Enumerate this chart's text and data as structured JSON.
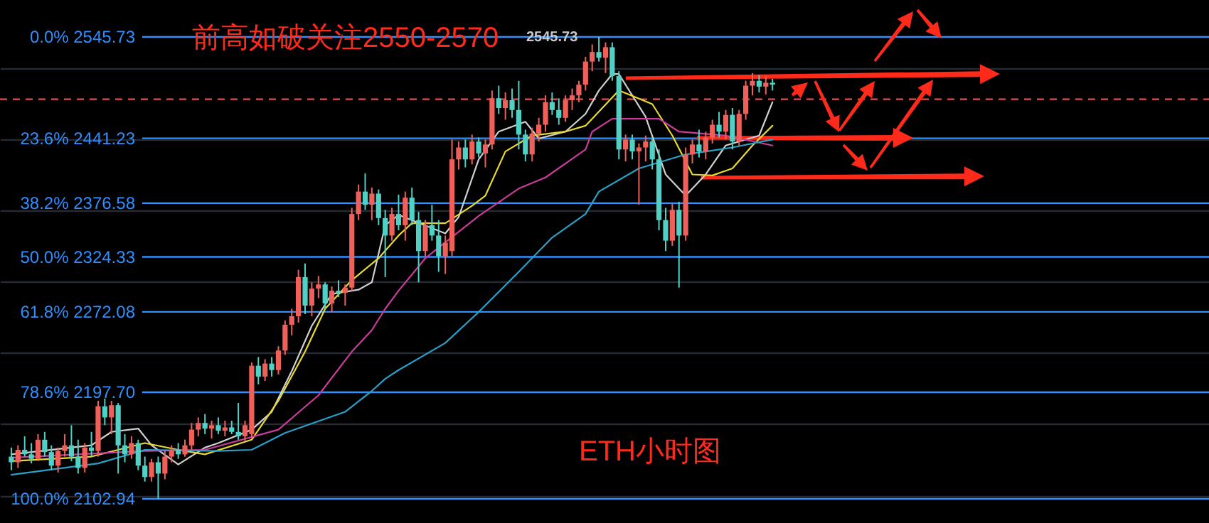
{
  "chart_data": {
    "type": "candlestick",
    "categories": [
      null,
      null,
      null,
      null,
      null,
      null,
      null,
      null,
      null,
      null,
      null,
      null,
      null,
      null,
      null,
      null,
      null,
      null,
      null,
      null,
      null,
      null,
      null,
      null,
      null,
      null,
      null,
      null,
      null,
      null,
      null,
      null,
      null,
      null,
      null,
      null,
      null,
      null,
      null,
      null,
      null,
      null,
      null,
      null,
      null,
      null,
      null,
      null,
      null,
      null,
      null,
      null,
      null,
      null,
      null,
      null,
      null,
      null,
      null,
      null,
      null,
      null,
      null,
      null,
      null,
      null,
      null,
      null,
      null,
      null,
      null,
      null,
      null,
      null,
      null,
      null,
      null,
      null,
      null,
      null,
      null,
      null,
      null,
      null,
      null,
      null,
      null,
      null,
      null,
      null,
      null,
      null,
      null,
      null,
      null,
      null,
      null,
      null,
      null,
      null,
      null,
      null,
      null,
      null,
      null,
      null,
      null,
      null,
      null,
      null,
      null,
      null,
      null,
      null,
      null
    ],
    "ohlc": [
      [
        2140,
        2148,
        2128,
        2135
      ],
      [
        2135,
        2150,
        2130,
        2146
      ],
      [
        2146,
        2158,
        2140,
        2142
      ],
      [
        2142,
        2152,
        2134,
        2138
      ],
      [
        2138,
        2160,
        2136,
        2155
      ],
      [
        2155,
        2162,
        2140,
        2144
      ],
      [
        2144,
        2150,
        2128,
        2132
      ],
      [
        2132,
        2148,
        2126,
        2145
      ],
      [
        2145,
        2160,
        2140,
        2150
      ],
      [
        2150,
        2168,
        2136,
        2140
      ],
      [
        2140,
        2155,
        2125,
        2130
      ],
      [
        2130,
        2152,
        2126,
        2148
      ],
      [
        2148,
        2162,
        2140,
        2145
      ],
      [
        2145,
        2190,
        2140,
        2185
      ],
      [
        2185,
        2192,
        2168,
        2175
      ],
      [
        2175,
        2190,
        2160,
        2186
      ],
      [
        2186,
        2188,
        2125,
        2150
      ],
      [
        2150,
        2160,
        2135,
        2142
      ],
      [
        2142,
        2158,
        2138,
        2152
      ],
      [
        2152,
        2155,
        2128,
        2132
      ],
      [
        2132,
        2140,
        2118,
        2122
      ],
      [
        2122,
        2138,
        2118,
        2135
      ],
      [
        2135,
        2140,
        2103,
        2125
      ],
      [
        2125,
        2145,
        2120,
        2140
      ],
      [
        2140,
        2150,
        2135,
        2146
      ],
      [
        2146,
        2152,
        2138,
        2142
      ],
      [
        2142,
        2155,
        2140,
        2150
      ],
      [
        2150,
        2170,
        2146,
        2164
      ],
      [
        2164,
        2175,
        2158,
        2170
      ],
      [
        2170,
        2178,
        2160,
        2165
      ],
      [
        2165,
        2172,
        2156,
        2168
      ],
      [
        2168,
        2175,
        2160,
        2163
      ],
      [
        2163,
        2172,
        2158,
        2166
      ],
      [
        2166,
        2172,
        2160,
        2162
      ],
      [
        2162,
        2188,
        2155,
        2158
      ],
      [
        2158,
        2172,
        2154,
        2168
      ],
      [
        2160,
        2225,
        2156,
        2222
      ],
      [
        2222,
        2230,
        2205,
        2212
      ],
      [
        2212,
        2228,
        2208,
        2224
      ],
      [
        2224,
        2230,
        2212,
        2218
      ],
      [
        2218,
        2240,
        2214,
        2236
      ],
      [
        2236,
        2264,
        2232,
        2260
      ],
      [
        2260,
        2275,
        2250,
        2268
      ],
      [
        2268,
        2312,
        2262,
        2305
      ],
      [
        2305,
        2318,
        2270,
        2278
      ],
      [
        2278,
        2300,
        2268,
        2294
      ],
      [
        2294,
        2306,
        2285,
        2298
      ],
      [
        2298,
        2300,
        2275,
        2280
      ],
      [
        2280,
        2296,
        2272,
        2292
      ],
      [
        2292,
        2302,
        2286,
        2290
      ],
      [
        2290,
        2298,
        2278,
        2295
      ],
      [
        2295,
        2372,
        2292,
        2366
      ],
      [
        2366,
        2395,
        2360,
        2388
      ],
      [
        2388,
        2406,
        2370,
        2375
      ],
      [
        2375,
        2392,
        2360,
        2386
      ],
      [
        2386,
        2390,
        2355,
        2362
      ],
      [
        2362,
        2370,
        2305,
        2345
      ],
      [
        2345,
        2372,
        2340,
        2366
      ],
      [
        2366,
        2385,
        2350,
        2355
      ],
      [
        2355,
        2388,
        2340,
        2382
      ],
      [
        2382,
        2392,
        2355,
        2360
      ],
      [
        2360,
        2368,
        2300,
        2330
      ],
      [
        2330,
        2360,
        2325,
        2355
      ],
      [
        2355,
        2375,
        2340,
        2345
      ],
      [
        2345,
        2360,
        2310,
        2325
      ],
      [
        2325,
        2345,
        2308,
        2338
      ],
      [
        2330,
        2440,
        2325,
        2420
      ],
      [
        2420,
        2438,
        2410,
        2432
      ],
      [
        2432,
        2440,
        2412,
        2420
      ],
      [
        2420,
        2445,
        2415,
        2438
      ],
      [
        2438,
        2442,
        2422,
        2426
      ],
      [
        2426,
        2440,
        2412,
        2435
      ],
      [
        2435,
        2490,
        2430,
        2482
      ],
      [
        2482,
        2495,
        2466,
        2472
      ],
      [
        2472,
        2488,
        2460,
        2480
      ],
      [
        2480,
        2492,
        2462,
        2470
      ],
      [
        2470,
        2500,
        2430,
        2445
      ],
      [
        2445,
        2450,
        2418,
        2425
      ],
      [
        2425,
        2452,
        2418,
        2446
      ],
      [
        2446,
        2462,
        2438,
        2455
      ],
      [
        2455,
        2485,
        2448,
        2478
      ],
      [
        2478,
        2488,
        2465,
        2470
      ],
      [
        2470,
        2482,
        2455,
        2462
      ],
      [
        2462,
        2485,
        2458,
        2480
      ],
      [
        2480,
        2492,
        2470,
        2485
      ],
      [
        2485,
        2500,
        2478,
        2496
      ],
      [
        2496,
        2525,
        2490,
        2520
      ],
      [
        2520,
        2538,
        2510,
        2530
      ],
      [
        2530,
        2545.73,
        2520,
        2524
      ],
      [
        2524,
        2540,
        2508,
        2535
      ],
      [
        2535,
        2540,
        2500,
        2505
      ],
      [
        2505,
        2510,
        2420,
        2430
      ],
      [
        2430,
        2445,
        2418,
        2440
      ],
      [
        2440,
        2445,
        2420,
        2428
      ],
      [
        2428,
        2436,
        2375,
        2432
      ],
      [
        2432,
        2444,
        2418,
        2438
      ],
      [
        2438,
        2442,
        2410,
        2420
      ],
      [
        2420,
        2430,
        2350,
        2360
      ],
      [
        2360,
        2372,
        2330,
        2340
      ],
      [
        2340,
        2376,
        2335,
        2370
      ],
      [
        2370,
        2378,
        2295,
        2345
      ],
      [
        2345,
        2432,
        2340,
        2425
      ],
      [
        2425,
        2440,
        2416,
        2435
      ],
      [
        2435,
        2450,
        2422,
        2428
      ],
      [
        2428,
        2448,
        2420,
        2442
      ],
      [
        2442,
        2460,
        2436,
        2455
      ],
      [
        2455,
        2468,
        2442,
        2448
      ],
      [
        2448,
        2470,
        2440,
        2465
      ],
      [
        2465,
        2472,
        2430,
        2438
      ],
      [
        2438,
        2470,
        2434,
        2466
      ],
      [
        2466,
        2500,
        2460,
        2495
      ],
      [
        2495,
        2508,
        2485,
        2500
      ],
      [
        2500,
        2506,
        2488,
        2494
      ],
      [
        2494,
        2505,
        2486,
        2498
      ],
      [
        2498,
        2502,
        2490,
        2496
      ]
    ],
    "colors": [
      "#4fd1c5",
      "#f0605a",
      "#4fd1c5",
      "#4fd1c5",
      "#f0605a",
      "#4fd1c5",
      "#4fd1c5",
      "#f0605a",
      "#f0605a",
      "#4fd1c5",
      "#4fd1c5",
      "#f0605a",
      "#4fd1c5",
      "#f0605a",
      "#4fd1c5",
      "#f0605a",
      "#4fd1c5",
      "#4fd1c5",
      "#f0605a",
      "#4fd1c5",
      "#4fd1c5",
      "#f0605a",
      "#4fd1c5",
      "#f0605a",
      "#f0605a",
      "#4fd1c5",
      "#f0605a",
      "#f0605a",
      "#f0605a",
      "#4fd1c5",
      "#f0605a",
      "#4fd1c5",
      "#f0605a",
      "#4fd1c5",
      "#4fd1c5",
      "#f0605a",
      "#f0605a",
      "#4fd1c5",
      "#f0605a",
      "#4fd1c5",
      "#f0605a",
      "#f0605a",
      "#f0605a",
      "#f0605a",
      "#4fd1c5",
      "#f0605a",
      "#f0605a",
      "#4fd1c5",
      "#f0605a",
      "#4fd1c5",
      "#f0605a",
      "#f0605a",
      "#f0605a",
      "#4fd1c5",
      "#f0605a",
      "#4fd1c5",
      "#4fd1c5",
      "#f0605a",
      "#4fd1c5",
      "#f0605a",
      "#4fd1c5",
      "#4fd1c5",
      "#f0605a",
      "#4fd1c5",
      "#4fd1c5",
      "#f0605a",
      "#f0605a",
      "#f0605a",
      "#4fd1c5",
      "#f0605a",
      "#4fd1c5",
      "#f0605a",
      "#f0605a",
      "#4fd1c5",
      "#f0605a",
      "#4fd1c5",
      "#4fd1c5",
      "#4fd1c5",
      "#f0605a",
      "#f0605a",
      "#f0605a",
      "#4fd1c5",
      "#4fd1c5",
      "#f0605a",
      "#f0605a",
      "#f0605a",
      "#f0605a",
      "#f0605a",
      "#4fd1c5",
      "#f0605a",
      "#4fd1c5",
      "#4fd1c5",
      "#f0605a",
      "#4fd1c5",
      "#f0605a",
      "#f0605a",
      "#4fd1c5",
      "#4fd1c5",
      "#4fd1c5",
      "#f0605a",
      "#4fd1c5",
      "#f0605a",
      "#f0605a",
      "#4fd1c5",
      "#f0605a",
      "#f0605a",
      "#4fd1c5",
      "#f0605a",
      "#4fd1c5",
      "#f0605a",
      "#f0605a",
      "#f0605a",
      "#4fd1c5",
      "#f0605a",
      "#4fd1c5"
    ],
    "series": [
      {
        "type": "line",
        "color": "#d0d0d0",
        "values": [
          2142,
          null,
          null,
          null,
          null,
          null,
          null,
          null,
          null,
          null,
          null,
          null,
          2150,
          null,
          null,
          2162,
          null,
          null,
          null,
          2165,
          null,
          2150,
          null,
          null,
          null,
          2133,
          null,
          null,
          null,
          2148,
          null,
          2152,
          null,
          null,
          null,
          null,
          2164,
          null,
          null,
          2180,
          null,
          null,
          2217,
          null,
          null,
          2259,
          null,
          null,
          2289,
          null,
          null,
          null,
          2293,
          null,
          2300,
          null,
          2355,
          null,
          2365,
          null,
          null,
          null,
          null,
          null,
          null,
          2347,
          null,
          2363,
          null,
          null,
          2420,
          null,
          null,
          2448,
          null,
          null,
          null,
          2458,
          null,
          2441,
          null,
          null,
          null,
          2448,
          null,
          null,
          2466,
          null,
          2490,
          null,
          2507,
          2507,
          null,
          null,
          null,
          2463,
          null,
          null,
          2405,
          null,
          null,
          2384,
          null,
          null,
          2405,
          null,
          null,
          2434,
          null,
          null,
          null,
          null,
          2444,
          null,
          2478
        ]
      },
      {
        "type": "line",
        "color": "#e8d830",
        "values": [
          2136,
          null,
          null,
          null,
          null,
          null,
          null,
          null,
          null,
          null,
          null,
          null,
          2140,
          null,
          null,
          null,
          null,
          null,
          null,
          null,
          2152,
          null,
          null,
          null,
          null,
          2146,
          null,
          null,
          null,
          2142,
          null,
          null,
          null,
          null,
          null,
          null,
          2155,
          null,
          null,
          null,
          2190,
          null,
          null,
          null,
          2235,
          null,
          null,
          2275,
          null,
          null,
          null,
          2302,
          null,
          null,
          null,
          2323,
          null,
          null,
          2345,
          null,
          2357,
          null,
          null,
          null,
          null,
          2357,
          null,
          null,
          null,
          2374,
          null,
          2384,
          null,
          null,
          2428,
          null,
          null,
          null,
          2444,
          null,
          null,
          null,
          null,
          2448,
          null,
          null,
          2454,
          null,
          null,
          null,
          null,
          2490,
          null,
          null,
          null,
          null,
          2476,
          null,
          null,
          2444,
          null,
          null,
          2405,
          null,
          null,
          2404,
          null,
          null,
          2411,
          null,
          null,
          2434,
          null,
          null,
          2454
        ]
      },
      {
        "type": "line",
        "color": "#c83c9c",
        "values": [
          2139,
          null,
          null,
          null,
          null,
          null,
          null,
          null,
          null,
          null,
          null,
          null,
          null,
          null,
          null,
          null,
          null,
          null,
          null,
          null,
          2145,
          null,
          null,
          null,
          null,
          null,
          null,
          null,
          null,
          2146,
          null,
          null,
          null,
          null,
          null,
          null,
          null,
          null,
          null,
          null,
          2164,
          null,
          null,
          null,
          null,
          null,
          2195,
          null,
          null,
          null,
          null,
          2235,
          null,
          null,
          2255,
          null,
          2275,
          null,
          2292,
          null,
          null,
          null,
          2323,
          null,
          null,
          null,
          null,
          null,
          null,
          null,
          2364,
          null,
          null,
          null,
          null,
          null,
          2391,
          null,
          null,
          null,
          2402,
          null,
          null,
          null,
          null,
          null,
          2430,
          2448,
          null,
          null,
          2461,
          null,
          null,
          null,
          null,
          null,
          null,
          2461,
          null,
          null,
          2448,
          null,
          null,
          null,
          null,
          null,
          null,
          2444,
          null,
          null,
          null,
          null,
          null,
          null,
          2434
        ]
      },
      {
        "type": "line",
        "color": "#2aa0c8",
        "values": [
          2124,
          null,
          null,
          null,
          null,
          null,
          null,
          null,
          null,
          null,
          null,
          null,
          null,
          2134,
          null,
          null,
          null,
          null,
          null,
          null,
          2146,
          null,
          null,
          null,
          null,
          null,
          null,
          null,
          null,
          null,
          null,
          2145,
          null,
          null,
          null,
          null,
          2146,
          null,
          null,
          null,
          null,
          2161,
          null,
          null,
          null,
          null,
          null,
          null,
          null,
          null,
          2180,
          null,
          null,
          null,
          2199,
          null,
          2210,
          null,
          2218,
          null,
          null,
          null,
          null,
          null,
          null,
          2243,
          null,
          null,
          null,
          null,
          2272,
          null,
          null,
          null,
          null,
          null,
          2310,
          null,
          null,
          null,
          null,
          2343,
          null,
          null,
          null,
          null,
          2366,
          null,
          2388,
          null,
          null,
          null,
          null,
          null,
          2411,
          null,
          null,
          null,
          null,
          null,
          null,
          2425,
          null,
          null,
          null,
          null,
          null,
          null,
          2432,
          null,
          null,
          null,
          null,
          null,
          2440
        ]
      }
    ],
    "log": true,
    "ylim": [
      2082,
      2585
    ],
    "yticks": [
      {
        "value": 2513,
        "label": null
      },
      {
        "value": 2440,
        "label": null
      },
      {
        "value": 2369,
        "label": null
      },
      {
        "value": 2301,
        "label": null
      },
      {
        "value": 2234,
        "label": null
      },
      {
        "value": 2169,
        "label": null
      },
      {
        "value": 2106,
        "label": null
      }
    ],
    "grid": "y",
    "ref_lines": [
      {
        "axis": "y",
        "value": 2545.73,
        "label": "0.0% 2545.73",
        "color": "#2f8fff"
      },
      {
        "axis": "y",
        "value": 2441.23,
        "label": "23.6% 2441.23",
        "color": "#2f8fff"
      },
      {
        "axis": "y",
        "value": 2376.58,
        "label": "38.2% 2376.58",
        "color": "#2f8fff"
      },
      {
        "axis": "y",
        "value": 2324.33,
        "label": "50.0% 2324.33",
        "color": "#2f8fff"
      },
      {
        "axis": "y",
        "value": 2272.08,
        "label": "61.8% 2272.08",
        "color": "#2f8fff"
      },
      {
        "axis": "y",
        "value": 2197.7,
        "label": "78.6% 2197.70",
        "color": "#2f8fff"
      },
      {
        "axis": "y",
        "value": 2102.94,
        "label": "100.0% 2102.94",
        "color": "#2f8fff"
      },
      {
        "axis": "y",
        "value": 2481,
        "color": "#e05050",
        "line_style": "dashed"
      }
    ],
    "annotations": [
      "前高如破关注2550-2570",
      {
        "text": "2545.73",
        "y": 2545.73
      },
      "ETH小时图"
    ]
  }
}
